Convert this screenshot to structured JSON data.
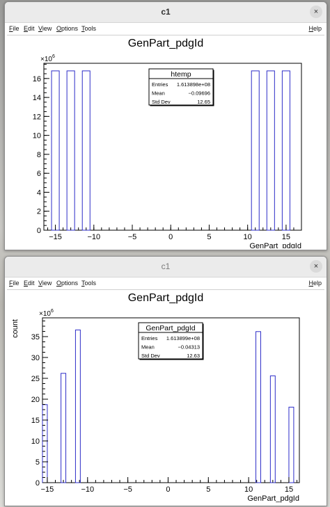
{
  "windows": [
    {
      "title": "c1",
      "menu": {
        "file": "File",
        "edit": "Edit",
        "view": "View",
        "options": "Options",
        "tools": "Tools",
        "help": "Help"
      },
      "close_glyph": "×",
      "chart_data": {
        "type": "bar",
        "title": "GenPart_pdgId",
        "xlabel": "GenPart_pdgId",
        "ylabel": "",
        "y_exponent_label": "×10",
        "y_exponent": "6",
        "xlim": [
          -16.5,
          17
        ],
        "ylim": [
          0,
          17.6
        ],
        "x_ticks": [
          -15,
          -10,
          -5,
          0,
          5,
          10,
          15
        ],
        "x_tick_labels": [
          "−15",
          "−10",
          "−5",
          "0",
          "5",
          "10",
          "15"
        ],
        "y_ticks": [
          0,
          2,
          4,
          6,
          8,
          10,
          12,
          14,
          16
        ],
        "bin_width": 1,
        "bins": [
          {
            "x": -15,
            "value": 16.8
          },
          {
            "x": -13,
            "value": 16.8
          },
          {
            "x": -11,
            "value": 16.8
          },
          {
            "x": 11,
            "value": 16.8
          },
          {
            "x": 13,
            "value": 16.8
          },
          {
            "x": 15,
            "value": 16.8
          }
        ],
        "stats": {
          "name": "htemp",
          "rows": [
            {
              "label": "Entries",
              "value": "1.613898e+08"
            },
            {
              "label": "Mean",
              "value": "−0.09696"
            },
            {
              "label": "Std Dev",
              "value": "12.65"
            }
          ]
        },
        "color": "#2c2cc8"
      }
    },
    {
      "title": "c1",
      "menu": {
        "file": "File",
        "edit": "Edit",
        "view": "View",
        "options": "Options",
        "tools": "Tools",
        "help": "Help"
      },
      "close_glyph": "×",
      "chart_data": {
        "type": "bar",
        "title": "GenPart_pdgId",
        "xlabel": "GenPart_pdgId",
        "ylabel": "count",
        "y_exponent_label": "×10",
        "y_exponent": "6",
        "xlim": [
          -15.6,
          16.3
        ],
        "ylim": [
          0,
          39.5
        ],
        "x_ticks": [
          -15,
          -10,
          -5,
          0,
          5,
          10,
          15
        ],
        "x_tick_labels": [
          "−15",
          "−10",
          "−5",
          "0",
          "5",
          "10",
          "15"
        ],
        "y_ticks": [
          0,
          5,
          10,
          15,
          20,
          25,
          30,
          35
        ],
        "bin_width": 0.6,
        "bins": [
          {
            "x": -15.3,
            "value": 18.7
          },
          {
            "x": -13.0,
            "value": 26.2
          },
          {
            "x": -11.2,
            "value": 36.6
          },
          {
            "x": 11.2,
            "value": 36.2
          },
          {
            "x": 13.0,
            "value": 25.6
          },
          {
            "x": 15.3,
            "value": 18.1
          }
        ],
        "stats": {
          "name": "GenPart_pdgId",
          "rows": [
            {
              "label": "Entries",
              "value": "1.613899e+08"
            },
            {
              "label": "Mean",
              "value": "−0.04313"
            },
            {
              "label": "Std Dev",
              "value": "12.63"
            }
          ]
        },
        "color": "#2c2cc8"
      }
    }
  ]
}
